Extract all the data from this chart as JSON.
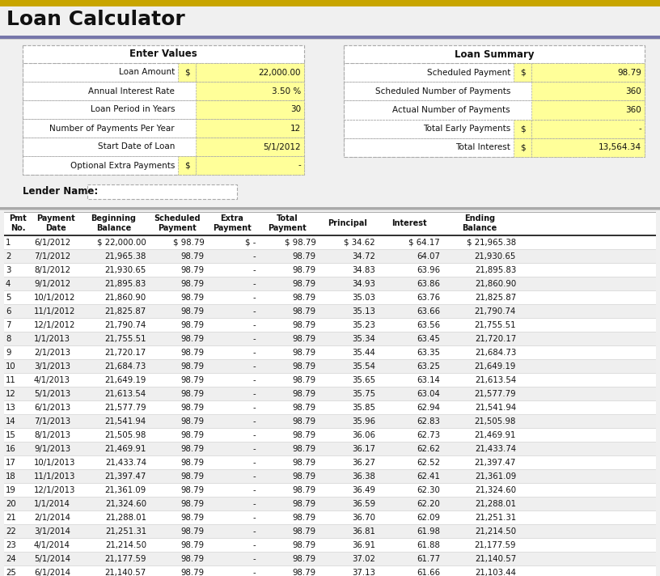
{
  "title": "Loan Calculator",
  "title_fontsize": 18,
  "bg_color": "#f0f0f0",
  "yellow_cell": "#ffff99",
  "top_bar_color": "#c8a500",
  "divider_color": "#7777aa",
  "border_color": "#aaaaaa",
  "text_color": "#111111",
  "enter_values": {
    "title": "Enter Values",
    "rows": [
      [
        "Loan Amount",
        "$",
        "22,000.00"
      ],
      [
        "Annual Interest Rate",
        "",
        "3.50 %"
      ],
      [
        "Loan Period in Years",
        "",
        "30"
      ],
      [
        "Number of Payments Per Year",
        "",
        "12"
      ],
      [
        "Start Date of Loan",
        "",
        "5/1/2012"
      ],
      [
        "Optional Extra Payments",
        "$",
        "-"
      ]
    ]
  },
  "loan_summary": {
    "title": "Loan Summary",
    "rows": [
      [
        "Scheduled Payment",
        "$",
        "98.79"
      ],
      [
        "Scheduled Number of Payments",
        "",
        "360"
      ],
      [
        "Actual Number of Payments",
        "",
        "360"
      ],
      [
        "Total Early Payments",
        "$",
        "-"
      ],
      [
        "Total Interest",
        "$",
        "13,564.34"
      ]
    ]
  },
  "lender_label": "Lender Name:",
  "col_header_texts": [
    "Pmt\nNo.",
    "Payment\nDate",
    "Beginning\nBalance",
    "Scheduled\nPayment",
    "Extra\nPayment",
    "Total\nPayment",
    "Principal",
    "Interest",
    "Ending\nBalance"
  ],
  "table_data": [
    [
      "1",
      "6/1/2012",
      "$ 22,000.00",
      "$ 98.79",
      "$ -",
      "$ 98.79",
      "$ 34.62",
      "$ 64.17",
      "$ 21,965.38"
    ],
    [
      "2",
      "7/1/2012",
      "21,965.38",
      "98.79",
      "-",
      "98.79",
      "34.72",
      "64.07",
      "21,930.65"
    ],
    [
      "3",
      "8/1/2012",
      "21,930.65",
      "98.79",
      "-",
      "98.79",
      "34.83",
      "63.96",
      "21,895.83"
    ],
    [
      "4",
      "9/1/2012",
      "21,895.83",
      "98.79",
      "-",
      "98.79",
      "34.93",
      "63.86",
      "21,860.90"
    ],
    [
      "5",
      "10/1/2012",
      "21,860.90",
      "98.79",
      "-",
      "98.79",
      "35.03",
      "63.76",
      "21,825.87"
    ],
    [
      "6",
      "11/1/2012",
      "21,825.87",
      "98.79",
      "-",
      "98.79",
      "35.13",
      "63.66",
      "21,790.74"
    ],
    [
      "7",
      "12/1/2012",
      "21,790.74",
      "98.79",
      "-",
      "98.79",
      "35.23",
      "63.56",
      "21,755.51"
    ],
    [
      "8",
      "1/1/2013",
      "21,755.51",
      "98.79",
      "-",
      "98.79",
      "35.34",
      "63.45",
      "21,720.17"
    ],
    [
      "9",
      "2/1/2013",
      "21,720.17",
      "98.79",
      "-",
      "98.79",
      "35.44",
      "63.35",
      "21,684.73"
    ],
    [
      "10",
      "3/1/2013",
      "21,684.73",
      "98.79",
      "-",
      "98.79",
      "35.54",
      "63.25",
      "21,649.19"
    ],
    [
      "11",
      "4/1/2013",
      "21,649.19",
      "98.79",
      "-",
      "98.79",
      "35.65",
      "63.14",
      "21,613.54"
    ],
    [
      "12",
      "5/1/2013",
      "21,613.54",
      "98.79",
      "-",
      "98.79",
      "35.75",
      "63.04",
      "21,577.79"
    ],
    [
      "13",
      "6/1/2013",
      "21,577.79",
      "98.79",
      "-",
      "98.79",
      "35.85",
      "62.94",
      "21,541.94"
    ],
    [
      "14",
      "7/1/2013",
      "21,541.94",
      "98.79",
      "-",
      "98.79",
      "35.96",
      "62.83",
      "21,505.98"
    ],
    [
      "15",
      "8/1/2013",
      "21,505.98",
      "98.79",
      "-",
      "98.79",
      "36.06",
      "62.73",
      "21,469.91"
    ],
    [
      "16",
      "9/1/2013",
      "21,469.91",
      "98.79",
      "-",
      "98.79",
      "36.17",
      "62.62",
      "21,433.74"
    ],
    [
      "17",
      "10/1/2013",
      "21,433.74",
      "98.79",
      "-",
      "98.79",
      "36.27",
      "62.52",
      "21,397.47"
    ],
    [
      "18",
      "11/1/2013",
      "21,397.47",
      "98.79",
      "-",
      "98.79",
      "36.38",
      "62.41",
      "21,361.09"
    ],
    [
      "19",
      "12/1/2013",
      "21,361.09",
      "98.79",
      "-",
      "98.79",
      "36.49",
      "62.30",
      "21,324.60"
    ],
    [
      "20",
      "1/1/2014",
      "21,324.60",
      "98.79",
      "-",
      "98.79",
      "36.59",
      "62.20",
      "21,288.01"
    ],
    [
      "21",
      "2/1/2014",
      "21,288.01",
      "98.79",
      "-",
      "98.79",
      "36.70",
      "62.09",
      "21,251.31"
    ],
    [
      "22",
      "3/1/2014",
      "21,251.31",
      "98.79",
      "-",
      "98.79",
      "36.81",
      "61.98",
      "21,214.50"
    ],
    [
      "23",
      "4/1/2014",
      "21,214.50",
      "98.79",
      "-",
      "98.79",
      "36.91",
      "61.88",
      "21,177.59"
    ],
    [
      "24",
      "5/1/2014",
      "21,177.59",
      "98.79",
      "-",
      "98.79",
      "37.02",
      "61.77",
      "21,140.57"
    ],
    [
      "25",
      "6/1/2014",
      "21,140.57",
      "98.79",
      "-",
      "98.79",
      "37.13",
      "61.66",
      "21,103.44"
    ]
  ]
}
